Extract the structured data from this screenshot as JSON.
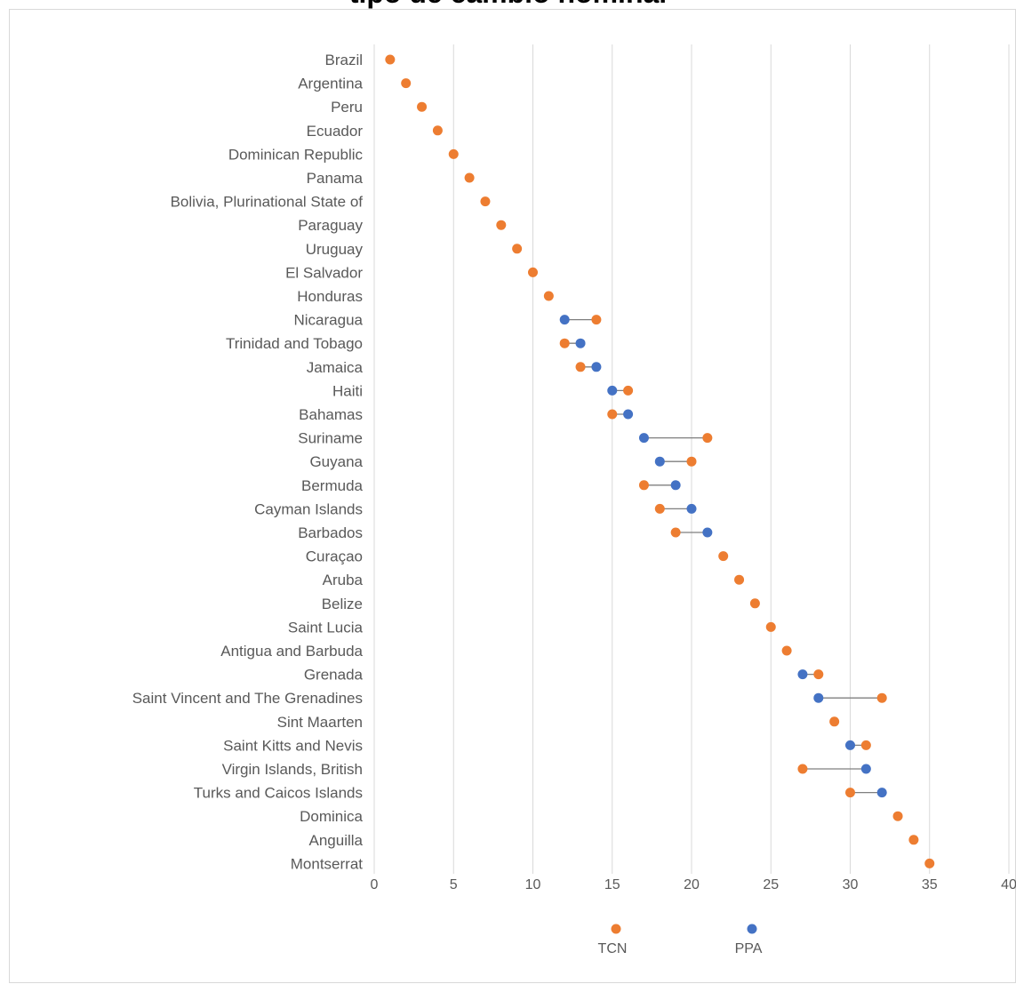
{
  "chart_data": {
    "type": "scatter",
    "title": "tipo de cambio nominal",
    "categories": [
      "Brazil",
      "Argentina",
      "Peru",
      "Ecuador",
      "Dominican Republic",
      "Panama",
      "Bolivia, Plurinational State of",
      "Paraguay",
      "Uruguay",
      "El Salvador",
      "Honduras",
      "Nicaragua",
      "Trinidad and Tobago",
      "Jamaica",
      "Haiti",
      "Bahamas",
      "Suriname",
      "Guyana",
      "Bermuda",
      "Cayman Islands",
      "Barbados",
      "Curaçao",
      "Aruba",
      "Belize",
      "Saint Lucia",
      "Antigua and Barbuda",
      "Grenada",
      "Saint Vincent and The Grenadines",
      "Sint Maarten",
      "Saint Kitts and Nevis",
      "Virgin Islands, British",
      "Turks and Caicos Islands",
      "Dominica",
      "Anguilla",
      "Montserrat"
    ],
    "series": [
      {
        "name": "TCN",
        "color": "#ED7D31",
        "values": [
          1,
          2,
          3,
          4,
          5,
          6,
          7,
          8,
          9,
          10,
          11,
          14,
          12,
          13,
          16,
          15,
          21,
          20,
          17,
          18,
          19,
          22,
          23,
          24,
          25,
          26,
          28,
          32,
          29,
          31,
          27,
          30,
          33,
          34,
          35
        ]
      },
      {
        "name": "PPA",
        "color": "#4472C4",
        "values": [
          null,
          null,
          null,
          null,
          null,
          null,
          null,
          null,
          null,
          null,
          null,
          12,
          13,
          14,
          15,
          16,
          17,
          18,
          19,
          20,
          21,
          null,
          null,
          null,
          null,
          null,
          27,
          28,
          null,
          30,
          31,
          32,
          null,
          null,
          null
        ]
      }
    ],
    "xlim": [
      0,
      40
    ],
    "xticks": [
      "0",
      "5",
      "10",
      "15",
      "20",
      "25",
      "30",
      "35",
      "40"
    ],
    "grid": true,
    "legend_position": "bottom",
    "connector_color": "#7f7f7f"
  }
}
